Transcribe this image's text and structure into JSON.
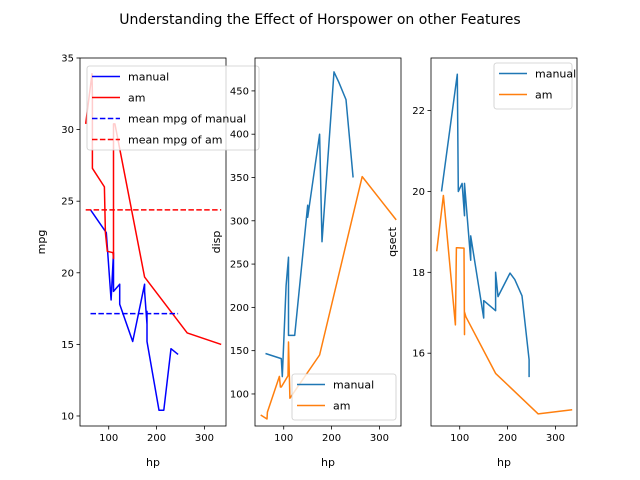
{
  "chart_data": {
    "type": "line",
    "title": "Understanding the Effect of Horspower on other Features",
    "colors": {
      "manual_1": "#0000ff",
      "am_1": "#ff0000",
      "manual_2": "#1f77b4",
      "am_2": "#ff7f0e"
    },
    "panels": [
      {
        "xlabel": "hp",
        "ylabel": "mpg",
        "xlim": [
          40,
          345
        ],
        "ylim": [
          9.3,
          35.0
        ],
        "xticks": [
          100,
          200,
          300
        ],
        "yticks": [
          10,
          15,
          20,
          25,
          30,
          35
        ],
        "legend_position": "upper right",
        "series": [
          {
            "name": "manual",
            "color_key": "manual_1",
            "style": "solid",
            "x": [
              62,
              95,
              105,
              110,
              110,
              123,
              123,
              150,
              175,
              175,
              180,
              180,
              180,
              205,
              215,
              230,
              245
            ],
            "y": [
              24.4,
              22.8,
              18.1,
              21.4,
              18.7,
              19.2,
              17.8,
              15.2,
              19.2,
              18.7,
              16.4,
              17.3,
              15.2,
              10.4,
              10.4,
              14.7,
              14.3
            ]
          },
          {
            "name": "am",
            "color_key": "am_1",
            "style": "solid",
            "x": [
              52,
              65,
              66,
              66,
              91,
              93,
              97,
              109,
              110,
              110,
              113,
              175,
              264,
              335
            ],
            "y": [
              30.4,
              33.9,
              32.4,
              27.3,
              26.0,
              22.8,
              21.5,
              21.4,
              21.0,
              30.4,
              30.4,
              19.7,
              15.8,
              15.0
            ]
          },
          {
            "name": "mean mpg of manual",
            "color_key": "manual_1",
            "style": "dashed",
            "x": [
              62,
              245
            ],
            "y": [
              17.15,
              17.15
            ]
          },
          {
            "name": "mean mpg of am",
            "color_key": "am_1",
            "style": "dashed",
            "x": [
              52,
              335
            ],
            "y": [
              24.39,
              24.39
            ]
          }
        ]
      },
      {
        "xlabel": "hp",
        "ylabel": "disp",
        "xlim": [
          40,
          345
        ],
        "ylim": [
          63.0,
          488.0
        ],
        "xticks": [
          100,
          200,
          300
        ],
        "yticks": [
          100,
          150,
          200,
          250,
          300,
          350,
          400,
          450
        ],
        "legend_position": "lower right",
        "series": [
          {
            "name": "manual",
            "color_key": "manual_2",
            "style": "solid",
            "x": [
              62,
              95,
              97,
              105,
              110,
              110,
              123,
              150,
              150,
              175,
              180,
              180,
              180,
              205,
              215,
              230,
              245
            ],
            "y": [
              146.7,
              140.8,
              120.1,
              225.0,
              258.0,
              167.6,
              167.6,
              318.0,
              304.0,
              400.0,
              275.8,
              275.8,
              275.8,
              472.0,
              460.0,
              440.0,
              350.0
            ]
          },
          {
            "name": "am",
            "color_key": "am_2",
            "style": "solid",
            "x": [
              52,
              65,
              66,
              66,
              91,
              93,
              95,
              109,
              110,
              110,
              113,
              175,
              264,
              335
            ],
            "y": [
              75.7,
              71.1,
              78.7,
              79.0,
              120.3,
              108.0,
              108.0,
              121.0,
              160.0,
              160.0,
              95.1,
              145.0,
              351.0,
              301.0
            ]
          }
        ]
      },
      {
        "xlabel": "hp",
        "ylabel": "qsect",
        "xlim": [
          40,
          345
        ],
        "ylim": [
          14.2,
          23.3
        ],
        "xticks": [
          100,
          200,
          300
        ],
        "yticks": [
          16,
          18,
          20,
          22
        ],
        "legend_position": "upper right",
        "series": [
          {
            "name": "manual",
            "color_key": "manual_2",
            "style": "solid",
            "x": [
              62,
              95,
              97,
              105,
              110,
              110,
              123,
              123,
              150,
              150,
              175,
              175,
              180,
              205,
              215,
              230,
              245,
              245
            ],
            "y": [
              20.0,
              22.9,
              20.0,
              20.2,
              19.4,
              20.2,
              18.3,
              18.9,
              16.87,
              17.3,
              17.05,
              18.0,
              17.4,
              17.98,
              17.82,
              17.42,
              15.84,
              15.41
            ]
          },
          {
            "name": "am",
            "color_key": "am_2",
            "style": "solid",
            "x": [
              52,
              66,
              91,
              93,
              95,
              109,
              110,
              110,
              113,
              175,
              264,
              335
            ],
            "y": [
              18.52,
              19.9,
              16.7,
              18.61,
              18.61,
              18.6,
              16.46,
              17.02,
              16.9,
              15.5,
              14.5,
              14.6
            ]
          }
        ]
      }
    ]
  }
}
